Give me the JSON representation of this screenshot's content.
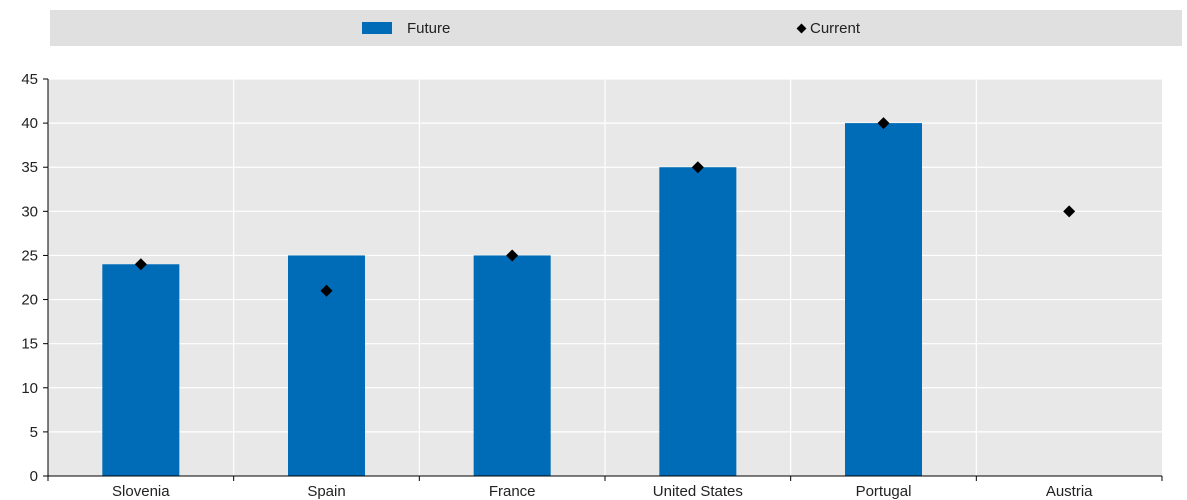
{
  "chart_data": {
    "type": "bar",
    "categories": [
      "Slovenia",
      "Spain",
      "France",
      "United States",
      "Portugal",
      "Austria"
    ],
    "series": [
      {
        "name": "Future",
        "kind": "bar",
        "color": "#006bb6",
        "values": [
          24,
          25,
          25,
          35,
          40,
          null
        ]
      },
      {
        "name": "Current",
        "kind": "marker",
        "marker": "diamond",
        "color": "#000000",
        "values": [
          24,
          21,
          25,
          35,
          40,
          30
        ]
      }
    ],
    "yticks": [
      0,
      5,
      10,
      15,
      20,
      25,
      30,
      35,
      40,
      45
    ],
    "ylim": [
      0,
      45
    ],
    "grid": true,
    "legend_position": "top",
    "background": "#e8e8e8"
  }
}
